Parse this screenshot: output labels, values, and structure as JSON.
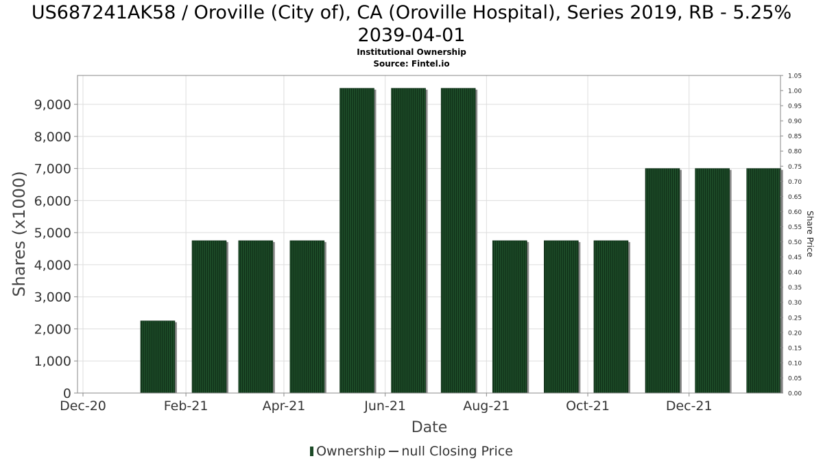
{
  "chart_data": {
    "type": "bar",
    "title_line1": "US687241AK58 / Oroville (City of), CA (Oroville Hospital), Series 2019, RB - 5.25%",
    "title_line2": "2039-04-01",
    "subtitle": "Institutional Ownership",
    "source": "Source: Fintel.io",
    "xlabel": "Date",
    "ylabel": "Shares (x1000)",
    "ylabel_right": "Share Price",
    "x_ticks": [
      "Dec-20",
      "Feb-21",
      "Apr-21",
      "Jun-21",
      "Aug-21",
      "Oct-21",
      "Dec-21"
    ],
    "y_ticks": [
      "0",
      "1,000",
      "2,000",
      "3,000",
      "4,000",
      "5,000",
      "6,000",
      "7,000",
      "8,000",
      "9,000"
    ],
    "y_tick_values": [
      0,
      1000,
      2000,
      3000,
      4000,
      5000,
      6000,
      7000,
      8000,
      9000
    ],
    "y2_ticks": [
      "0.00",
      "0.05",
      "0.10",
      "0.15",
      "0.20",
      "0.25",
      "0.30",
      "0.35",
      "0.40",
      "0.45",
      "0.50",
      "0.55",
      "0.60",
      "0.65",
      "0.70",
      "0.75",
      "0.80",
      "0.85",
      "0.90",
      "0.95",
      "1.00",
      "1.05"
    ],
    "ylim": [
      0,
      9900
    ],
    "y2lim": [
      0,
      1.05
    ],
    "series": [
      {
        "name": "Ownership",
        "dates": [
          "2021-01-15",
          "2021-02-15",
          "2021-03-15",
          "2021-04-15",
          "2021-05-15",
          "2021-06-15",
          "2021-07-15",
          "2021-08-15",
          "2021-09-15",
          "2021-10-15",
          "2021-11-15",
          "2021-12-15",
          "2022-01-15"
        ],
        "values": [
          2250,
          4750,
          4750,
          4750,
          9500,
          9500,
          9500,
          4750,
          4750,
          4750,
          7000,
          7000,
          7000
        ]
      }
    ],
    "legend": {
      "ownership": "Ownership",
      "price": "null Closing Price"
    }
  }
}
